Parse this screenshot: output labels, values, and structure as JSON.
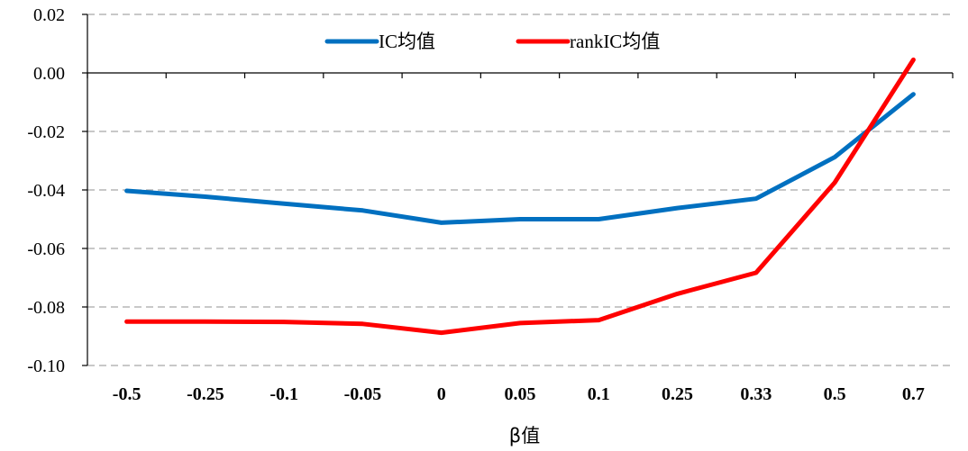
{
  "chart_data": {
    "type": "line",
    "title": "",
    "xlabel": "β值",
    "ylabel": "",
    "categories": [
      "-0.5",
      "-0.25",
      "-0.1",
      "-0.05",
      "0",
      "0.05",
      "0.1",
      "0.25",
      "0.33",
      "0.5",
      "0.7"
    ],
    "y_ticks": [
      "0.02",
      "0.00",
      "-0.02",
      "-0.04",
      "-0.06",
      "-0.08",
      "-0.10"
    ],
    "ylim": [
      -0.1,
      0.02
    ],
    "grid": "horizontal dashed",
    "legend_position": "top-center",
    "series": [
      {
        "name": "IC均值",
        "color": "#0070C0",
        "values": [
          -0.0403,
          -0.0423,
          -0.0447,
          -0.047,
          -0.0512,
          -0.05,
          -0.05,
          -0.0462,
          -0.043,
          -0.0288,
          -0.0073
        ]
      },
      {
        "name": "rankIC均值",
        "color": "#FF0000",
        "values": [
          -0.085,
          -0.085,
          -0.0851,
          -0.0858,
          -0.0888,
          -0.0855,
          -0.0845,
          -0.0755,
          -0.0683,
          -0.0375,
          0.0045
        ]
      }
    ]
  }
}
